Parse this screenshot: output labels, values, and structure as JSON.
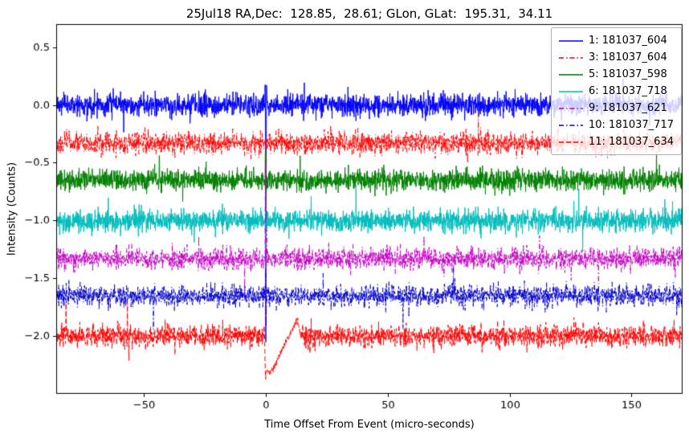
{
  "chart_data": {
    "type": "line",
    "title": "25Jul18 RA,Dec:  128.85,  28.61; GLon, GLat:  195.31,  34.11",
    "xlabel": "Time Offset From Event (micro-seconds)",
    "ylabel": "Intensity (Counts)",
    "xlim": [
      -86,
      171
    ],
    "ylim": [
      -2.5,
      0.7
    ],
    "xticks": [
      -50,
      0,
      50,
      100,
      150
    ],
    "xtick_labels": [
      "−50",
      "0",
      "50",
      "100",
      "150"
    ],
    "yticks": [
      0.5,
      0.0,
      -0.5,
      -1.0,
      -1.5,
      -2.0
    ],
    "ytick_labels": [
      "0.5",
      "0.0",
      "−0.5",
      "−1.0",
      "−1.5",
      "−2.0"
    ],
    "grid": false,
    "legend_position": "upper right",
    "sample_step": 0.1,
    "noise_sigma": 0.045,
    "series": [
      {
        "name": "1: 181037_604",
        "color": "#0000ff",
        "linestyle": "solid",
        "dash": [],
        "baseline": 0.0,
        "event": [
          [
            -0.4,
            0.06
          ],
          [
            -0.25,
            0.25
          ],
          [
            -0.05,
            -0.5
          ],
          [
            0.0,
            -2.05
          ],
          [
            0.1,
            -1.4
          ],
          [
            0.25,
            0.2
          ],
          [
            0.5,
            0.04
          ]
        ]
      },
      {
        "name": "3: 181037_604",
        "color": "#ff0000",
        "linestyle": "dashdot",
        "dash": [
          6,
          3,
          1.5,
          3
        ],
        "baseline": -0.33,
        "event": [
          [
            -0.3,
            -0.2
          ],
          [
            0.0,
            -0.55
          ],
          [
            0.3,
            -0.3
          ]
        ]
      },
      {
        "name": "5: 181037_598",
        "color": "#008000",
        "linestyle": "solid",
        "dash": [],
        "baseline": -0.65,
        "event": [
          [
            -0.3,
            -0.45
          ],
          [
            -0.1,
            -0.38
          ],
          [
            0.05,
            -1.0
          ],
          [
            0.3,
            -0.6
          ]
        ]
      },
      {
        "name": "6: 181037_718",
        "color": "#00bdbd",
        "linestyle": "solid",
        "dash": [],
        "baseline": -1.0,
        "event": [
          [
            -0.2,
            -0.62
          ],
          [
            0.05,
            -1.3
          ],
          [
            0.3,
            -0.98
          ]
        ]
      },
      {
        "name": "9: 181037_621",
        "color": "#c400c4",
        "linestyle": "dashdot",
        "dash": [
          6,
          3,
          1.5,
          3
        ],
        "baseline": -1.33,
        "event": [
          [
            -0.25,
            -0.55
          ],
          [
            -0.05,
            -0.5
          ],
          [
            0.0,
            -1.9
          ],
          [
            0.3,
            -1.1
          ],
          [
            0.6,
            -1.33
          ]
        ]
      },
      {
        "name": "10: 181037_717",
        "color": "#0000cd",
        "linestyle": "dashdot",
        "dash": [
          6,
          3,
          1.5,
          3
        ],
        "baseline": -1.65,
        "event": [
          [
            -0.15,
            -1.25
          ],
          [
            0.05,
            -2.0
          ],
          [
            0.3,
            -1.62
          ]
        ]
      },
      {
        "name": "11: 181037_634",
        "color": "#ff0000",
        "linestyle": "dashed",
        "dash": [
          6,
          3
        ],
        "baseline": -2.0,
        "event": [
          [
            -0.5,
            -2.05
          ],
          [
            -0.1,
            -2.38
          ],
          [
            0.4,
            -2.3
          ],
          [
            2.0,
            -2.32
          ],
          [
            13.0,
            -1.86
          ],
          [
            14.5,
            -2.02
          ]
        ]
      }
    ]
  }
}
